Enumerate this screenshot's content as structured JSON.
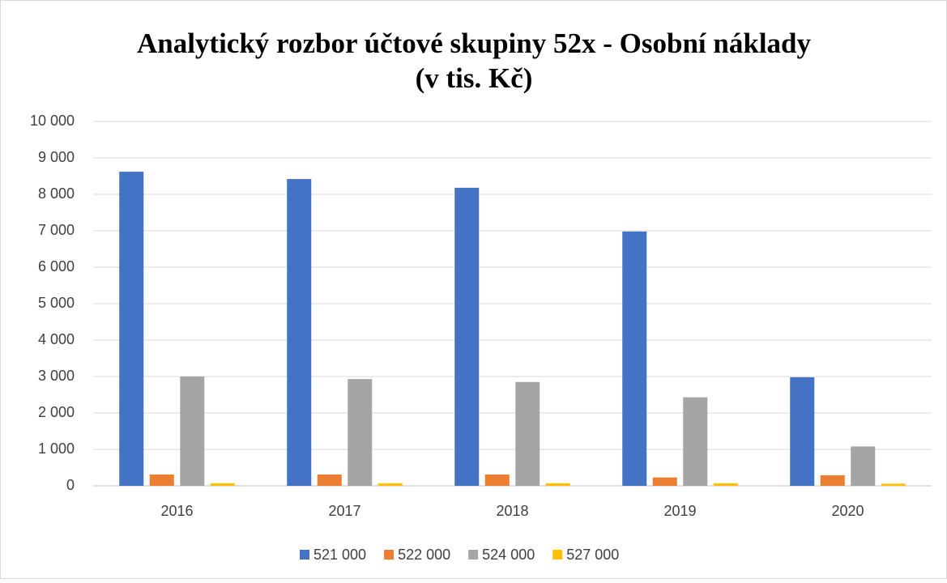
{
  "chart_data": {
    "type": "bar",
    "title": [
      "Analytický rozbor účtové skupiny 52x - Osobní náklady",
      "(v tis. Kč)"
    ],
    "categories": [
      "2016",
      "2017",
      "2018",
      "2019",
      "2020"
    ],
    "series": [
      {
        "name": "521 000",
        "color": "#4472c4",
        "values": [
          8620,
          8420,
          8180,
          6980,
          2980
        ]
      },
      {
        "name": "522 000",
        "color": "#ed7d31",
        "values": [
          310,
          310,
          310,
          230,
          290
        ]
      },
      {
        "name": "524 000",
        "color": "#a5a5a5",
        "values": [
          3000,
          2930,
          2850,
          2430,
          1080
        ]
      },
      {
        "name": "527 000",
        "color": "#ffc000",
        "values": [
          70,
          70,
          70,
          70,
          60
        ]
      }
    ],
    "ylim": [
      0,
      10000
    ],
    "yticks": [
      0,
      {
        "value": 1000,
        "label": "1 000"
      },
      {
        "value": 2000,
        "label": "2 000"
      },
      {
        "value": 3000,
        "label": "3 000"
      },
      {
        "value": 4000,
        "label": "4 000"
      },
      {
        "value": 5000,
        "label": "5 000"
      },
      {
        "value": 6000,
        "label": "6 000"
      },
      {
        "value": 7000,
        "label": "7 000"
      },
      {
        "value": 8000,
        "label": "8 000"
      },
      {
        "value": 9000,
        "label": "9 000"
      },
      {
        "value": 10000,
        "label": "10 000"
      }
    ],
    "grid": true,
    "legend": "bottom"
  }
}
